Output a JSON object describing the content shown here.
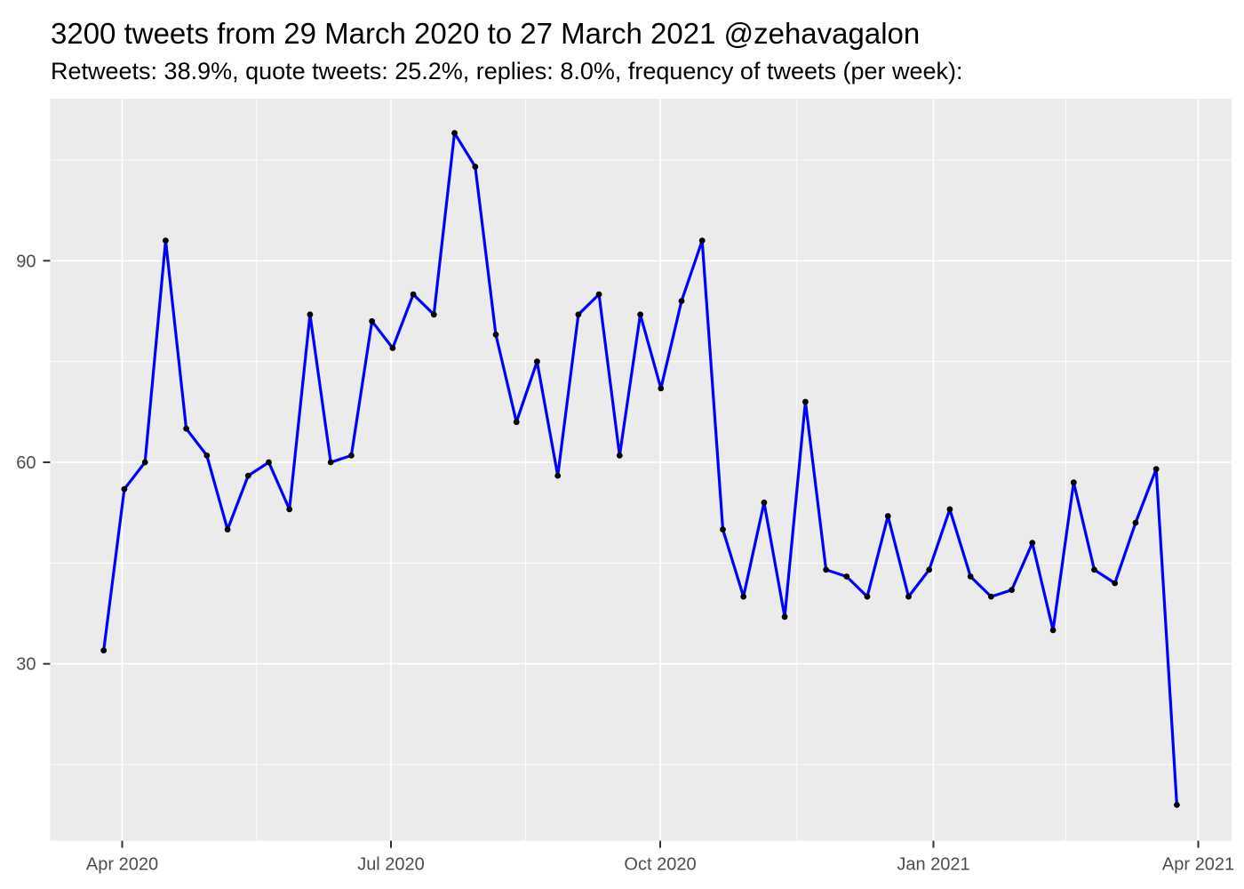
{
  "title": "3200 tweets from 29 March 2020 to 27 March 2021 @zehavagalon",
  "subtitle": "Retweets: 38.9%, quote tweets: 25.2%, replies: 8.0%, frequency of tweets (per week):",
  "chart_data": {
    "type": "line",
    "series_name": "tweets per week",
    "total_tweets": 3200,
    "x": [
      "2020-03-29",
      "2020-04-05",
      "2020-04-12",
      "2020-04-19",
      "2020-04-26",
      "2020-05-03",
      "2020-05-10",
      "2020-05-17",
      "2020-05-24",
      "2020-05-31",
      "2020-06-07",
      "2020-06-14",
      "2020-06-21",
      "2020-06-28",
      "2020-07-05",
      "2020-07-12",
      "2020-07-19",
      "2020-07-26",
      "2020-08-02",
      "2020-08-09",
      "2020-08-16",
      "2020-08-23",
      "2020-08-30",
      "2020-09-06",
      "2020-09-13",
      "2020-09-20",
      "2020-09-27",
      "2020-10-04",
      "2020-10-11",
      "2020-10-18",
      "2020-10-25",
      "2020-11-01",
      "2020-11-08",
      "2020-11-15",
      "2020-11-22",
      "2020-11-29",
      "2020-12-06",
      "2020-12-13",
      "2020-12-20",
      "2020-12-27",
      "2021-01-03",
      "2021-01-10",
      "2021-01-17",
      "2021-01-24",
      "2021-01-31",
      "2021-02-07",
      "2021-02-14",
      "2021-02-21",
      "2021-02-28",
      "2021-03-07",
      "2021-03-14",
      "2021-03-21",
      "2021-03-28"
    ],
    "values": [
      32,
      56,
      60,
      93,
      65,
      61,
      50,
      58,
      60,
      53,
      82,
      60,
      61,
      81,
      77,
      85,
      82,
      109,
      104,
      79,
      66,
      75,
      58,
      82,
      85,
      61,
      82,
      71,
      84,
      93,
      50,
      40,
      54,
      37,
      69,
      44,
      43,
      40,
      52,
      40,
      44,
      53,
      43,
      40,
      41,
      48,
      35,
      57,
      44,
      42,
      51,
      59,
      9
    ],
    "xlabel": "",
    "ylabel": "",
    "x_tick_labels": [
      "Apr 2020",
      "Jul 2020",
      "Oct 2020",
      "Jan 2021",
      "Apr 2021"
    ],
    "y_tick_labels": [
      "30",
      "60",
      "90"
    ],
    "y_major_ticks": [
      30,
      60,
      90
    ],
    "y_minor_ticks": [
      15,
      45,
      75,
      105
    ],
    "ylim": [
      4,
      114
    ],
    "grid": "on",
    "legend": "none",
    "colors": {
      "line": "#0000FF",
      "point": "#000000",
      "panel_background": "#EBEBEB",
      "gridline": "#FFFFFF",
      "axis_text": "#4D4D4D",
      "tick_mark": "#333333",
      "title_text": "#000000"
    }
  }
}
